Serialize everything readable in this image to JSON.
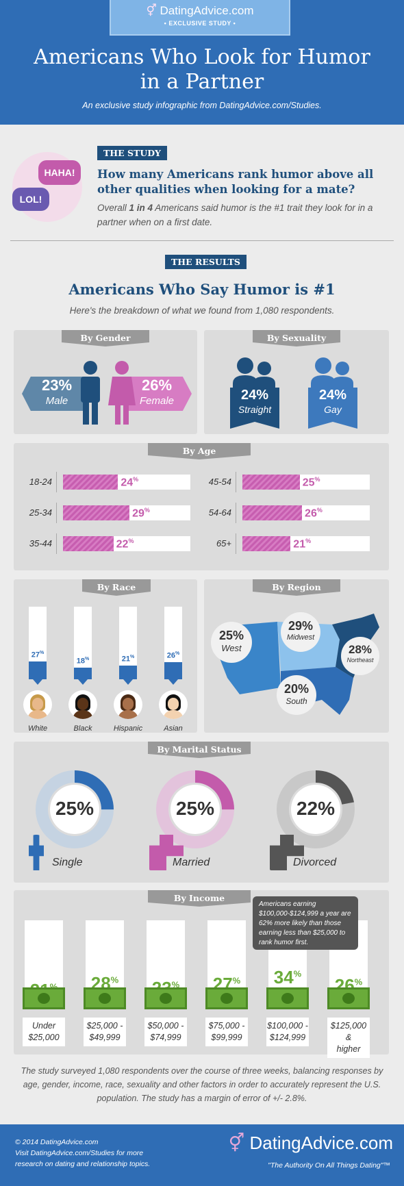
{
  "header": {
    "brand": "DatingAdvice.com",
    "badge": "• EXCLUSIVE STUDY •",
    "title_line1": "Americans Who Look for Humor",
    "title_line2": "in a Partner",
    "subtitle": "An exclusive study infographic from DatingAdvice.com/Studies."
  },
  "study": {
    "label": "THE STUDY",
    "bubble_1": "HAHA!",
    "bubble_2": "LOL!",
    "question": "How many Americans rank humor above all other qualities when looking for a mate?",
    "answer_pre": "Overall ",
    "answer_bold": "1 in 4",
    "answer_post": " Americans said humor is the #1 trait they look for in a partner when on a first date."
  },
  "results": {
    "label": "THE RESULTS",
    "title": "Americans Who Say Humor is #1",
    "subtitle": "Here's the breakdown of what we found from 1,080 respondents."
  },
  "gender": {
    "tab": "By Gender",
    "male_pct": "23%",
    "male_label": "Male",
    "female_pct": "26%",
    "female_label": "Female"
  },
  "sexuality": {
    "tab": "By Sexuality",
    "straight_pct": "24%",
    "straight_label": "Straight",
    "gay_pct": "24%",
    "gay_label": "Gay"
  },
  "age": {
    "tab": "By Age",
    "rows": [
      {
        "label": "18-24",
        "value": 24,
        "text": "24",
        "unit": "%"
      },
      {
        "label": "25-34",
        "value": 29,
        "text": "29",
        "unit": "%"
      },
      {
        "label": "35-44",
        "value": 22,
        "text": "22",
        "unit": "%"
      },
      {
        "label": "45-54",
        "value": 25,
        "text": "25",
        "unit": "%"
      },
      {
        "label": "54-64",
        "value": 26,
        "text": "26",
        "unit": "%"
      },
      {
        "label": "65+",
        "value": 21,
        "text": "21",
        "unit": "%"
      }
    ]
  },
  "race": {
    "tab": "By Race",
    "items": [
      {
        "label": "White",
        "value": 27,
        "text": "27",
        "unit": "%"
      },
      {
        "label": "Black",
        "value": 18,
        "text": "18",
        "unit": "%"
      },
      {
        "label": "Hispanic",
        "value": 21,
        "text": "21",
        "unit": "%"
      },
      {
        "label": "Asian",
        "value": 26,
        "text": "26",
        "unit": "%"
      }
    ]
  },
  "region": {
    "tab": "By Region",
    "west_pct": "25%",
    "west_label": "West",
    "midwest_pct": "29%",
    "midwest_label": "Midwest",
    "northeast_pct": "28%",
    "northeast_label": "Northeast",
    "south_pct": "20%",
    "south_label": "South"
  },
  "marital": {
    "tab": "By Marital Status",
    "items": [
      {
        "label": "Single",
        "value": 25,
        "text": "25%",
        "color": "#2f6db5",
        "track": "#c5d3e2"
      },
      {
        "label": "Married",
        "value": 25,
        "text": "25%",
        "color": "#c35bab",
        "track": "#e3c3dc"
      },
      {
        "label": "Divorced",
        "value": 22,
        "text": "22%",
        "color": "#555555",
        "track": "#c8c8c8"
      }
    ]
  },
  "income": {
    "tab": "By Income",
    "callout": "Americans earning $100,000-$124,999 a year are 62% more likely than those earning less than $25,000 to rank humor first.",
    "items": [
      {
        "label1": "Under",
        "label2": "$25,000",
        "value": 21,
        "text": "21",
        "unit": "%"
      },
      {
        "label1": "$25,000 -",
        "label2": "$49,999",
        "value": 28,
        "text": "28",
        "unit": "%"
      },
      {
        "label1": "$50,000 -",
        "label2": "$74,999",
        "value": 23,
        "text": "23",
        "unit": "%"
      },
      {
        "label1": "$75,000 -",
        "label2": "$99,999",
        "value": 27,
        "text": "27",
        "unit": "%"
      },
      {
        "label1": "$100,000 -",
        "label2": "$124,999",
        "value": 34,
        "text": "34",
        "unit": "%"
      },
      {
        "label1": "$125,000 &",
        "label2": "higher",
        "value": 26,
        "text": "26",
        "unit": "%"
      }
    ]
  },
  "footnote": "The study surveyed 1,080 respondents over the course of three weeks, balancing responses by age, gender, income, race, sexuality and other factors in order to accurately represent the U.S. population. The study has a margin of error of +/- 2.8%.",
  "footer": {
    "copyright": "© 2014 DatingAdvice.com",
    "visit": "Visit DatingAdvice.com/Studies for more",
    "visit2": "research on dating and relationship topics.",
    "brand": "DatingAdvice.com",
    "tagline": "\"The Authority On All Things Dating\"™"
  },
  "colors": {
    "blue": "#2f6db5",
    "navy": "#1f4f7c",
    "pink": "#c35bab",
    "green": "#6aab3a"
  }
}
